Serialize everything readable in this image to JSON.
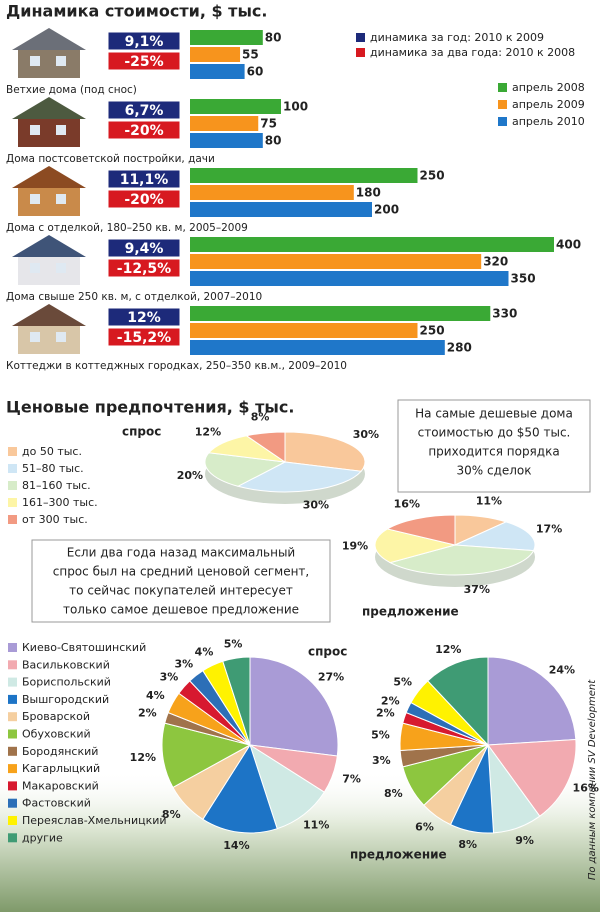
{
  "chart_data": [
    {
      "type": "bar",
      "title": "Динамика стоимости, $ тыс.",
      "categories": [
        "Ветхие дома (под снос)",
        "Дома постсоветской постройки, дачи",
        "Дома с отделкой, 180–250 кв. м, 2005–2009",
        "Дома свыше 250 кв. м, с отделкой, 2007–2010",
        "Коттеджи в коттеджных городках, 250–350 кв.м., 2009–2010"
      ],
      "series": [
        {
          "name": "динамика за год: 2010 к 2009",
          "color": "#1d2a7a",
          "style": "badge",
          "values": [
            9.1,
            6.7,
            11.1,
            9.4,
            12
          ],
          "value_labels": [
            "9,1%",
            "6,7%",
            "11,1%",
            "9,4%",
            "12%"
          ]
        },
        {
          "name": "динамика за два года: 2010 к 2008",
          "color": "#d71920",
          "style": "badge",
          "values": [
            -25,
            -20,
            -20,
            -12.5,
            -15.2
          ],
          "value_labels": [
            "-25%",
            "-20%",
            "-20%",
            "-12,5%",
            "-15,2%"
          ]
        },
        {
          "name": "апрель 2008",
          "color": "#3aa935",
          "values": [
            80,
            100,
            250,
            400,
            330
          ]
        },
        {
          "name": "апрель 2009",
          "color": "#f7941d",
          "values": [
            55,
            75,
            180,
            320,
            250
          ]
        },
        {
          "name": "апрель 2010",
          "color": "#1f77c9",
          "values": [
            60,
            80,
            200,
            350,
            280
          ]
        }
      ]
    },
    {
      "type": "pie",
      "title": "Ценовые предпочтения, $ тыс.",
      "categories": [
        "до 50 тыс.",
        "51–80 тыс.",
        "81–160 тыс.",
        "161–300 тыс.",
        "от 300 тыс."
      ],
      "colors": [
        "#f9c89b",
        "#cfe6f5",
        "#d7ecc9",
        "#fdf5a6",
        "#f29a82"
      ],
      "series": [
        {
          "name": "спрос",
          "values": [
            30,
            30,
            20,
            12,
            8
          ],
          "value_labels": [
            "30%",
            "30%",
            "20%",
            "12%",
            "8%"
          ]
        },
        {
          "name": "предложение",
          "values": [
            11,
            17,
            37,
            19,
            16
          ],
          "value_labels": [
            "11%",
            "17%",
            "37%",
            "19%",
            "16%"
          ]
        }
      ],
      "annotations": [
        [
          "На самые дешевые дома",
          "стоимостью до $50 тыс.",
          "приходится порядка",
          "30% сделок"
        ],
        [
          "Если два года назад максимальный",
          "спрос был на средний ценовой сегмент,",
          "то сейчас покупателей интересует",
          "только самое дешевое предложение"
        ]
      ]
    },
    {
      "type": "pie",
      "categories": [
        "Киево-Святошинский",
        "Васильковский",
        "Бориспольский",
        "Вышгородский",
        "Броварской",
        "Обуховский",
        "Бородянский",
        "Кагарлыцкий",
        "Макаровский",
        "Фастовский",
        "Переяслав-Хмельницкий",
        "другие"
      ],
      "colors": [
        "#a99bd6",
        "#f2aab0",
        "#cfe9e4",
        "#1d74c6",
        "#f5cfa0",
        "#8dc63f",
        "#a0734b",
        "#f7a21b",
        "#d7192f",
        "#2c6fb7",
        "#fff200",
        "#3f9b74"
      ],
      "series": [
        {
          "name": "спрос",
          "values": [
            27,
            7,
            11,
            14,
            8,
            12,
            2,
            4,
            3,
            3,
            4,
            5
          ],
          "value_labels": [
            "27%",
            "7%",
            "11%",
            "14%",
            "8%",
            "12%",
            "2%",
            "4%",
            "3%",
            "3%",
            "4%",
            "5%"
          ]
        },
        {
          "name": "предложение",
          "values": [
            24,
            16,
            9,
            8,
            6,
            8,
            3,
            5,
            2,
            2,
            5,
            12
          ],
          "value_labels": [
            "24%",
            "16%",
            "9%",
            "8%",
            "6%",
            "8%",
            "3%",
            "5%",
            "2%",
            "2%",
            "5%",
            "12%"
          ]
        }
      ],
      "source": "По данным компании SV Development"
    }
  ]
}
